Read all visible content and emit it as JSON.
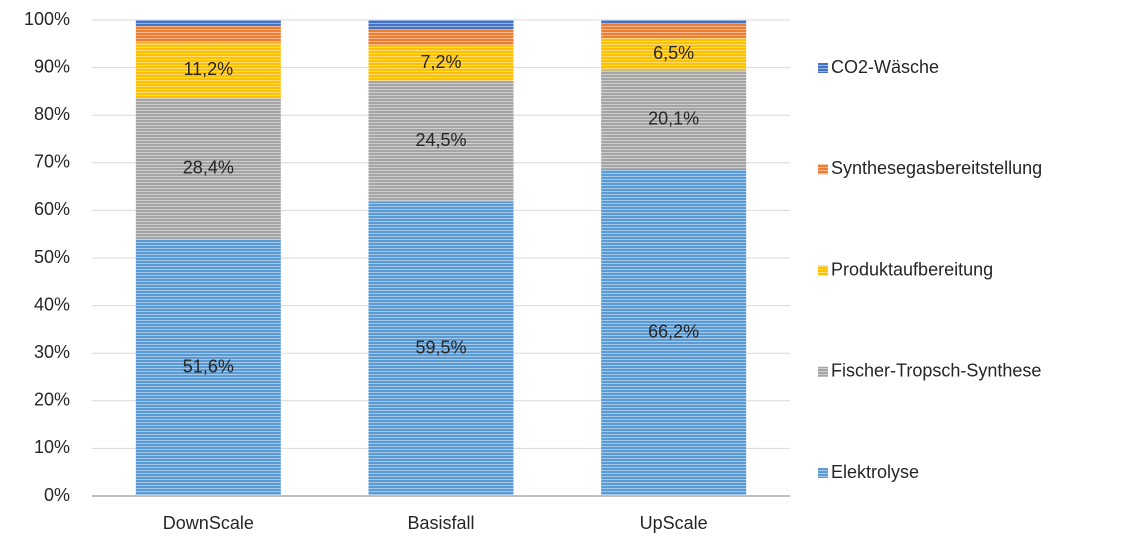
{
  "chart_data": {
    "type": "stacked_bar_100",
    "categories": [
      "DownScale",
      "Basisfall",
      "UpScale"
    ],
    "series": [
      {
        "name": "Elektrolyse",
        "color": "#5b9bd5",
        "values": [
          51.6,
          59.5,
          66.2
        ],
        "value_labels": [
          "51,6%",
          "59,5%",
          "66,2%"
        ]
      },
      {
        "name": "Fischer-Tropsch-Synthese",
        "color": "#a5a5a5",
        "values": [
          28.4,
          24.5,
          20.1
        ],
        "value_labels": [
          "28,4%",
          "24,5%",
          "20,1%"
        ]
      },
      {
        "name": "Produktaufbereitung",
        "color": "#ffc000",
        "values": [
          11.2,
          7.2,
          6.5
        ],
        "value_labels": [
          "11,2%",
          "7,2%",
          "6,5%"
        ]
      },
      {
        "name": "Synthesegasbereitstellung",
        "color": "#ed7d31",
        "values": [
          3.3,
          3.1,
          2.9
        ],
        "value_labels": [
          null,
          null,
          null
        ]
      },
      {
        "name": "CO2-Wäsche",
        "color": "#4472c4",
        "values": [
          1.2,
          2.0,
          0.8
        ],
        "value_labels": [
          null,
          null,
          null
        ]
      }
    ],
    "ylim": [
      0,
      100
    ],
    "yticks": [
      {
        "value": 0,
        "label": "0%"
      },
      {
        "value": 10,
        "label": "10%"
      },
      {
        "value": 20,
        "label": "20%"
      },
      {
        "value": 30,
        "label": "30%"
      },
      {
        "value": 40,
        "label": "40%"
      },
      {
        "value": 50,
        "label": "50%"
      },
      {
        "value": 60,
        "label": "60%"
      },
      {
        "value": 70,
        "label": "70%"
      },
      {
        "value": 80,
        "label": "80%"
      },
      {
        "value": 90,
        "label": "90%"
      },
      {
        "value": 100,
        "label": "100%"
      }
    ],
    "grid": true,
    "legend": "right"
  }
}
